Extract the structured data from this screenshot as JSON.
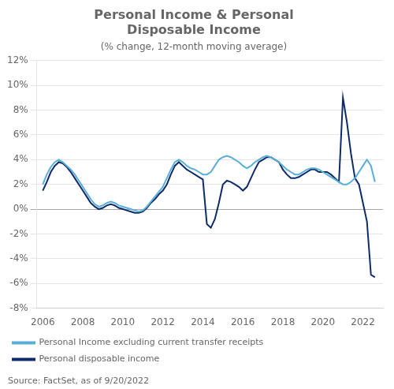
{
  "chart_data": {
    "type": "line",
    "title": "Personal Income & Personal\nDisposable Income",
    "subtitle": "(% change, 12-month moving average)",
    "annotations": [
      "Source: FactSet, as of 9/20/2022"
    ],
    "x": [
      2006.0,
      2006.2,
      2006.4,
      2006.6,
      2006.8,
      2007.0,
      2007.2,
      2007.4,
      2007.6,
      2007.8,
      2008.0,
      2008.2,
      2008.4,
      2008.6,
      2008.8,
      2009.0,
      2009.2,
      2009.4,
      2009.6,
      2009.8,
      2010.0,
      2010.2,
      2010.4,
      2010.6,
      2010.8,
      2011.0,
      2011.2,
      2011.4,
      2011.6,
      2011.8,
      2012.0,
      2012.2,
      2012.4,
      2012.6,
      2012.8,
      2013.0,
      2013.2,
      2013.4,
      2013.6,
      2013.8,
      2014.0,
      2014.2,
      2014.4,
      2014.6,
      2014.8,
      2015.0,
      2015.2,
      2015.4,
      2015.6,
      2015.8,
      2016.0,
      2016.2,
      2016.4,
      2016.6,
      2016.8,
      2017.0,
      2017.2,
      2017.4,
      2017.6,
      2017.8,
      2018.0,
      2018.2,
      2018.4,
      2018.6,
      2018.8,
      2019.0,
      2019.2,
      2019.4,
      2019.6,
      2019.8,
      2020.0,
      2020.2,
      2020.4,
      2020.6,
      2020.8,
      2021.0,
      2021.2,
      2021.4,
      2021.6,
      2021.8,
      2022.0,
      2022.2,
      2022.4,
      2022.6
    ],
    "series": [
      {
        "name": "Personal Income excluding current transfer receipts",
        "color": "#5aafd6",
        "values": [
          2.0,
          2.8,
          3.4,
          3.8,
          4.0,
          3.8,
          3.5,
          3.2,
          2.8,
          2.3,
          1.8,
          1.3,
          0.8,
          0.4,
          0.2,
          0.3,
          0.5,
          0.6,
          0.5,
          0.3,
          0.2,
          0.1,
          0.0,
          -0.1,
          -0.2,
          -0.1,
          0.2,
          0.6,
          1.0,
          1.4,
          1.8,
          2.5,
          3.2,
          3.8,
          4.0,
          3.8,
          3.5,
          3.3,
          3.2,
          3.0,
          2.8,
          2.8,
          3.0,
          3.5,
          4.0,
          4.2,
          4.3,
          4.2,
          4.0,
          3.8,
          3.5,
          3.3,
          3.5,
          3.8,
          4.0,
          4.2,
          4.3,
          4.2,
          4.0,
          3.8,
          3.5,
          3.2,
          3.0,
          2.8,
          2.8,
          3.0,
          3.2,
          3.3,
          3.3,
          3.2,
          3.0,
          2.8,
          2.6,
          2.4,
          2.2,
          2.0,
          2.0,
          2.2,
          2.5,
          3.0,
          3.5,
          4.0,
          3.5,
          2.2
        ]
      },
      {
        "name": "Personal disposable income",
        "color": "#0d2b6b",
        "values": [
          1.5,
          2.2,
          3.0,
          3.5,
          3.8,
          3.7,
          3.4,
          3.0,
          2.5,
          2.0,
          1.5,
          1.0,
          0.5,
          0.2,
          0.0,
          0.1,
          0.3,
          0.4,
          0.3,
          0.1,
          0.0,
          -0.1,
          -0.2,
          -0.3,
          -0.3,
          -0.2,
          0.1,
          0.5,
          0.8,
          1.2,
          1.5,
          2.0,
          2.8,
          3.5,
          3.8,
          3.5,
          3.2,
          3.0,
          2.8,
          2.6,
          2.4,
          -1.2,
          -1.5,
          -0.8,
          0.5,
          2.0,
          2.3,
          2.2,
          2.0,
          1.8,
          1.5,
          1.8,
          2.5,
          3.2,
          3.8,
          4.0,
          4.2,
          4.2,
          4.0,
          3.8,
          3.2,
          2.8,
          2.5,
          2.5,
          2.6,
          2.8,
          3.0,
          3.2,
          3.2,
          3.0,
          3.0,
          3.0,
          2.8,
          2.5,
          2.2,
          9.0,
          7.0,
          4.5,
          2.5,
          2.0,
          0.5,
          -1.0,
          -5.3,
          -5.5
        ]
      }
    ],
    "xlim": [
      2005.7,
      2023.0
    ],
    "xticks": [
      2006,
      2008,
      2010,
      2012,
      2014,
      2016,
      2018,
      2020,
      2022
    ],
    "ylim": [
      -8,
      12
    ],
    "yticks": [
      {
        "value": -8,
        "label": "-8%"
      },
      {
        "value": -6,
        "label": "-6%"
      },
      {
        "value": -4,
        "label": "-4%"
      },
      {
        "value": -2,
        "label": "-2%"
      },
      {
        "value": 0,
        "label": "0%"
      },
      {
        "value": 2,
        "label": "2%"
      },
      {
        "value": 4,
        "label": "4%"
      },
      {
        "value": 6,
        "label": "6%"
      },
      {
        "value": 8,
        "label": "8%"
      },
      {
        "value": 10,
        "label": "10%"
      },
      {
        "value": 12,
        "label": "12%"
      }
    ],
    "grid": "y",
    "legend": "lower left"
  }
}
